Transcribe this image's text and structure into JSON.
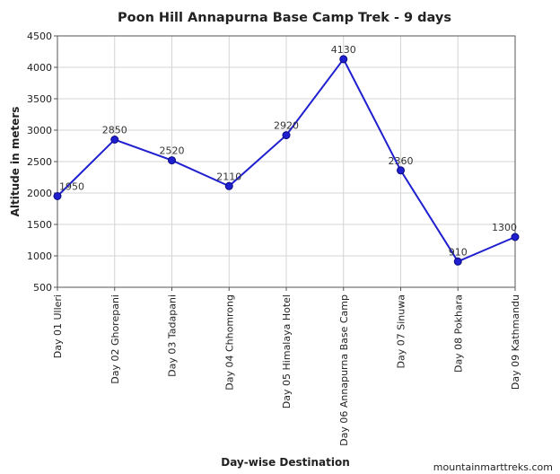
{
  "chart_data": {
    "type": "line",
    "title": "Poon Hill Annapurna Base Camp Trek - 9 days",
    "xlabel": "Day-wise Destination",
    "ylabel": "Altitude in meters",
    "categories": [
      "Day 01 Ulleri",
      "Day 02 Ghorepani",
      "Day 03 Tadapani",
      "Day 04 Chhomrong",
      "Day 05 Himalaya Hotel",
      "Day 06 Annapurna Base Camp",
      "Day 07 Sinuwa",
      "Day 08 Pokhara",
      "Day 09 Kathmandu"
    ],
    "series": [
      {
        "values": [
          1950,
          2850,
          2520,
          2110,
          2920,
          4130,
          2360,
          910,
          1300
        ]
      }
    ],
    "data_labels": [
      "1950",
      "2850",
      "2520",
      "2110",
      "2920",
      "4130",
      "2360",
      "910",
      "1300"
    ],
    "ylim": [
      500,
      4500
    ],
    "yticks": [
      500,
      1000,
      1500,
      2000,
      2500,
      3000,
      3500,
      4000,
      4500
    ],
    "grid": true,
    "legend": "none",
    "colors": {
      "line": "#1f1fd0",
      "marker": "#1f1fd0",
      "grid": "#d4d4d4",
      "axis": "#555555"
    }
  },
  "credit": "mountainmarttreks.com"
}
